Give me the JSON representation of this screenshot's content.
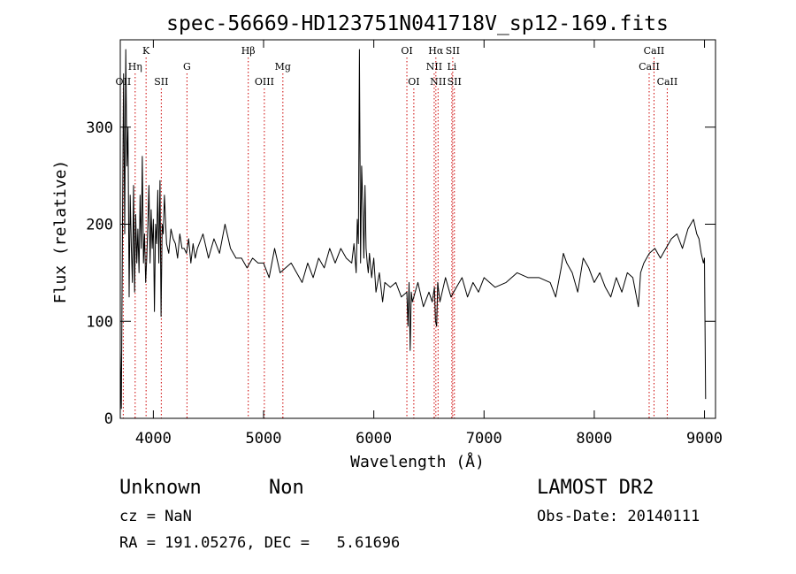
{
  "chart_data": {
    "type": "line",
    "title": "spec-56669-HD123751N041718V_sp12-169.fits",
    "xlabel": "Wavelength (Å)",
    "ylabel": "Flux (relative)",
    "xlim": [
      3700,
      9100
    ],
    "ylim": [
      0,
      390
    ],
    "xticks": [
      4000,
      5000,
      6000,
      7000,
      8000,
      9000
    ],
    "yticks": [
      0,
      100,
      200,
      300
    ],
    "grid": false,
    "line_color": "#000000",
    "marker_color": "#cc0000",
    "lines": [
      {
        "label": "OII",
        "x": 3727,
        "tier": 3
      },
      {
        "label": "Hη",
        "x": 3835,
        "tier": 2
      },
      {
        "label": "K",
        "x": 3934,
        "tier": 1
      },
      {
        "label": "SII",
        "x": 4072,
        "tier": 3
      },
      {
        "label": "G",
        "x": 4305,
        "tier": 2
      },
      {
        "label": "Hβ",
        "x": 4861,
        "tier": 1
      },
      {
        "label": "OIII",
        "x": 5007,
        "tier": 3
      },
      {
        "label": "Mg",
        "x": 5175,
        "tier": 2
      },
      {
        "label": "OI",
        "x": 6300,
        "tier": 1
      },
      {
        "label": "OI",
        "x": 6363,
        "tier": 3
      },
      {
        "label": "NII",
        "x": 6548,
        "tier": 2
      },
      {
        "label": "Hα",
        "x": 6563,
        "tier": 1
      },
      {
        "label": "NII",
        "x": 6583,
        "tier": 3
      },
      {
        "label": "Li",
        "x": 6708,
        "tier": 2
      },
      {
        "label": "SII",
        "x": 6716,
        "tier": 1
      },
      {
        "label": "SII",
        "x": 6731,
        "tier": 3
      },
      {
        "label": "CaII",
        "x": 8498,
        "tier": 2
      },
      {
        "label": "CaII",
        "x": 8542,
        "tier": 1
      },
      {
        "label": "CaII",
        "x": 8662,
        "tier": 3
      }
    ],
    "series": [
      {
        "x": [
          3700,
          3710,
          3720,
          3730,
          3740,
          3750,
          3760,
          3770,
          3780,
          3790,
          3800,
          3810,
          3820,
          3830,
          3840,
          3850,
          3860,
          3870,
          3880,
          3890,
          3900,
          3910,
          3920,
          3930,
          3940,
          3950,
          3960,
          3970,
          3980,
          3990,
          4000,
          4010,
          4020,
          4030,
          4040,
          4050,
          4060,
          4070,
          4080,
          4090,
          4100,
          4120,
          4140,
          4160,
          4180,
          4200,
          4220,
          4240,
          4260,
          4280,
          4300,
          4320,
          4340,
          4360,
          4380,
          4400,
          4450,
          4500,
          4550,
          4600,
          4650,
          4700,
          4750,
          4800,
          4850,
          4900,
          4950,
          5000,
          5050,
          5100,
          5150,
          5200,
          5250,
          5300,
          5350,
          5400,
          5450,
          5500,
          5550,
          5600,
          5650,
          5700,
          5750,
          5800,
          5820,
          5840,
          5850,
          5860,
          5870,
          5880,
          5890,
          5900,
          5910,
          5920,
          5930,
          5940,
          5950,
          5960,
          5980,
          6000,
          6020,
          6050,
          6080,
          6100,
          6150,
          6200,
          6250,
          6300,
          6310,
          6320,
          6330,
          6340,
          6350,
          6400,
          6450,
          6500,
          6530,
          6550,
          6560,
          6570,
          6580,
          6600,
          6650,
          6700,
          6750,
          6800,
          6850,
          6900,
          6950,
          7000,
          7100,
          7200,
          7300,
          7400,
          7500,
          7600,
          7650,
          7700,
          7720,
          7750,
          7800,
          7850,
          7900,
          7950,
          8000,
          8050,
          8100,
          8150,
          8200,
          8250,
          8300,
          8350,
          8400,
          8420,
          8450,
          8500,
          8550,
          8600,
          8650,
          8700,
          8750,
          8800,
          8850,
          8900,
          8930,
          8950,
          8970,
          8990,
          9000,
          9010
        ],
        "y": [
          70,
          10,
          200,
          355,
          190,
          380,
          260,
          300,
          125,
          230,
          175,
          140,
          240,
          130,
          210,
          160,
          195,
          150,
          230,
          175,
          270,
          160,
          190,
          140,
          165,
          200,
          240,
          160,
          215,
          175,
          205,
          110,
          200,
          180,
          235,
          160,
          245,
          105,
          200,
          190,
          230,
          180,
          170,
          195,
          185,
          180,
          165,
          190,
          175,
          175,
          170,
          185,
          160,
          180,
          165,
          175,
          190,
          165,
          185,
          170,
          200,
          175,
          165,
          165,
          155,
          165,
          160,
          160,
          145,
          175,
          150,
          155,
          160,
          150,
          140,
          160,
          145,
          165,
          155,
          175,
          160,
          175,
          165,
          160,
          180,
          150,
          205,
          180,
          380,
          160,
          260,
          220,
          165,
          240,
          175,
          160,
          150,
          170,
          145,
          165,
          130,
          150,
          120,
          140,
          135,
          140,
          125,
          130,
          95,
          140,
          70,
          130,
          120,
          140,
          115,
          130,
          120,
          135,
          100,
          95,
          140,
          120,
          145,
          125,
          135,
          145,
          125,
          140,
          130,
          145,
          135,
          140,
          150,
          145,
          145,
          140,
          125,
          155,
          170,
          160,
          150,
          130,
          165,
          155,
          140,
          150,
          135,
          125,
          145,
          130,
          150,
          145,
          115,
          150,
          160,
          170,
          175,
          165,
          175,
          185,
          190,
          175,
          195,
          205,
          190,
          185,
          170,
          160,
          165,
          20
        ]
      }
    ]
  },
  "footer": {
    "object_class": "Unknown",
    "subclass": "Non",
    "survey": "LAMOST DR2",
    "cz": "cz = NaN",
    "obs_date": "Obs-Date: 20140111",
    "coords": "RA = 191.05276, DEC =   5.61696"
  }
}
